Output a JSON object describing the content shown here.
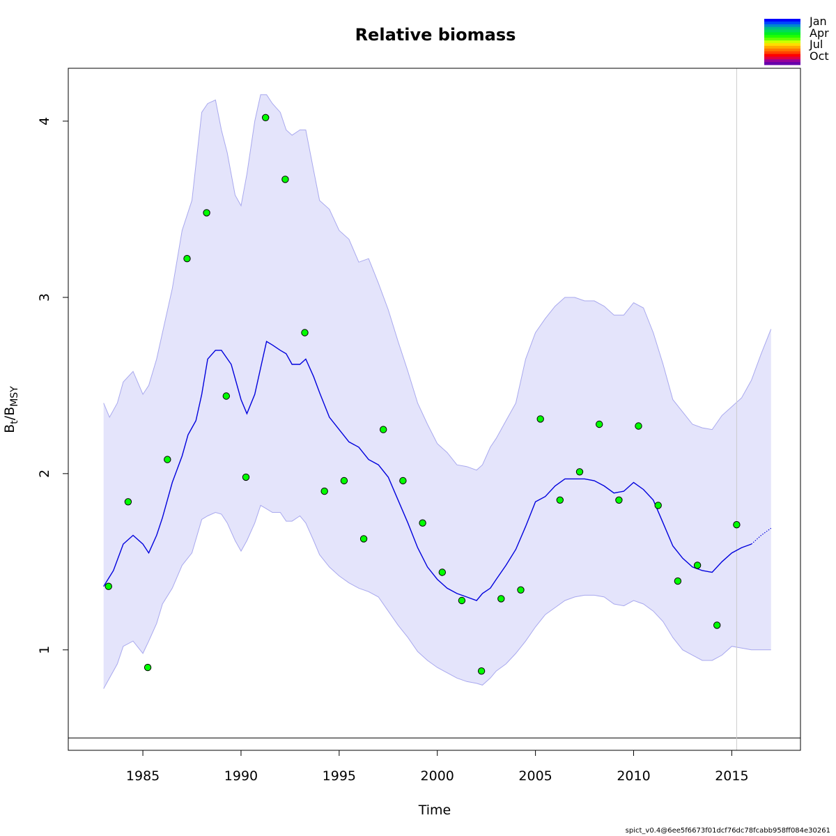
{
  "chart_data": {
    "type": "line",
    "title": "Relative biomass",
    "xlabel": "Time",
    "ylabel_main": "B",
    "ylabel_sub_t": "t",
    "ylabel_slash": "/B",
    "ylabel_sub_msy": "MSY",
    "xlim": [
      1981.2,
      2018.5
    ],
    "ylim": [
      0.43,
      4.3
    ],
    "x_ticks": [
      1985,
      1990,
      1995,
      2000,
      2005,
      2010,
      2015
    ],
    "y_ticks": [
      1,
      2,
      3,
      4
    ],
    "tick_labels_x": [
      "1985",
      "1990",
      "1995",
      "2000",
      "2005",
      "2010",
      "2015"
    ],
    "tick_labels_y": [
      "1",
      "2",
      "3",
      "4"
    ],
    "reference_line_y": 0.5,
    "vertical_line_x": 2015.25,
    "fit_end_x": 2016.0,
    "colors": {
      "ci_fill": "#e4e4fb",
      "ci_edge": "#a8a8ee",
      "line": "#0000dd",
      "points": "#00ff00",
      "vline": "#cccccc",
      "hline": "#000000"
    },
    "series": [
      {
        "role": "estimate",
        "x": [
          1983.0,
          1983.5,
          1984.0,
          1984.5,
          1985.0,
          1985.3,
          1985.7,
          1986.0,
          1986.5,
          1987.0,
          1987.3,
          1987.7,
          1988.0,
          1988.3,
          1988.7,
          1989.0,
          1989.5,
          1990.0,
          1990.3,
          1990.7,
          1991.0,
          1991.3,
          1991.6,
          1992.0,
          1992.3,
          1992.6,
          1993.0,
          1993.3,
          1993.7,
          1994.0,
          1994.5,
          1995.0,
          1995.5,
          1996.0,
          1996.5,
          1997.0,
          1997.5,
          1998.0,
          1998.5,
          1999.0,
          1999.5,
          2000.0,
          2000.5,
          2001.0,
          2001.5,
          2002.0,
          2002.3,
          2002.7,
          2003.0,
          2003.5,
          2004.0,
          2004.5,
          2005.0,
          2005.5,
          2006.0,
          2006.5,
          2007.0,
          2007.5,
          2008.0,
          2008.5,
          2009.0,
          2009.5,
          2010.0,
          2010.5,
          2011.0,
          2011.5,
          2012.0,
          2012.5,
          2013.0,
          2013.5,
          2014.0,
          2014.5,
          2015.0,
          2015.5,
          2016.0
        ],
        "y": [
          1.36,
          1.45,
          1.6,
          1.65,
          1.6,
          1.55,
          1.65,
          1.75,
          1.95,
          2.1,
          2.22,
          2.3,
          2.45,
          2.65,
          2.7,
          2.7,
          2.62,
          2.42,
          2.34,
          2.45,
          2.6,
          2.75,
          2.73,
          2.7,
          2.68,
          2.62,
          2.62,
          2.65,
          2.55,
          2.46,
          2.32,
          2.25,
          2.18,
          2.15,
          2.08,
          2.05,
          1.98,
          1.85,
          1.72,
          1.58,
          1.47,
          1.4,
          1.35,
          1.32,
          1.3,
          1.28,
          1.32,
          1.35,
          1.4,
          1.48,
          1.57,
          1.7,
          1.84,
          1.87,
          1.93,
          1.97,
          1.97,
          1.97,
          1.96,
          1.93,
          1.89,
          1.9,
          1.95,
          1.91,
          1.85,
          1.72,
          1.59,
          1.52,
          1.47,
          1.45,
          1.44,
          1.5,
          1.55,
          1.58,
          1.6
        ]
      },
      {
        "role": "forecast",
        "x": [
          2016.0,
          2016.5,
          2017.0
        ],
        "y": [
          1.6,
          1.65,
          1.69
        ]
      },
      {
        "role": "ci_upper",
        "x": [
          1983.0,
          1983.3,
          1983.7,
          1984.0,
          1984.5,
          1985.0,
          1985.3,
          1985.7,
          1986.0,
          1986.5,
          1987.0,
          1987.5,
          1988.0,
          1988.3,
          1988.7,
          1989.0,
          1989.3,
          1989.7,
          1990.0,
          1990.3,
          1990.7,
          1991.0,
          1991.3,
          1991.6,
          1992.0,
          1992.3,
          1992.6,
          1993.0,
          1993.3,
          1993.7,
          1994.0,
          1994.5,
          1995.0,
          1995.5,
          1996.0,
          1996.5,
          1997.0,
          1997.5,
          1998.0,
          1998.5,
          1999.0,
          1999.5,
          2000.0,
          2000.5,
          2001.0,
          2001.5,
          2002.0,
          2002.3,
          2002.7,
          2003.0,
          2003.5,
          2004.0,
          2004.5,
          2005.0,
          2005.5,
          2006.0,
          2006.5,
          2007.0,
          2007.5,
          2008.0,
          2008.5,
          2009.0,
          2009.5,
          2010.0,
          2010.5,
          2011.0,
          2011.5,
          2012.0,
          2012.5,
          2013.0,
          2013.5,
          2014.0,
          2014.5,
          2015.0,
          2015.5,
          2016.0,
          2016.5,
          2017.0
        ],
        "y": [
          2.4,
          2.32,
          2.4,
          2.52,
          2.58,
          2.45,
          2.5,
          2.65,
          2.8,
          3.05,
          3.38,
          3.55,
          4.05,
          4.1,
          4.12,
          3.95,
          3.82,
          3.58,
          3.52,
          3.7,
          4.0,
          4.15,
          4.15,
          4.1,
          4.05,
          3.95,
          3.92,
          3.95,
          3.95,
          3.72,
          3.55,
          3.5,
          3.38,
          3.33,
          3.2,
          3.22,
          3.08,
          2.93,
          2.75,
          2.58,
          2.4,
          2.28,
          2.17,
          2.12,
          2.05,
          2.04,
          2.02,
          2.05,
          2.15,
          2.2,
          2.3,
          2.4,
          2.65,
          2.8,
          2.88,
          2.95,
          3.0,
          3.0,
          2.98,
          2.98,
          2.95,
          2.9,
          2.9,
          2.97,
          2.94,
          2.8,
          2.62,
          2.42,
          2.35,
          2.28,
          2.26,
          2.25,
          2.33,
          2.38,
          2.43,
          2.53,
          2.68,
          2.82
        ]
      },
      {
        "role": "ci_lower",
        "x": [
          1983.0,
          1983.3,
          1983.7,
          1984.0,
          1984.5,
          1985.0,
          1985.3,
          1985.7,
          1986.0,
          1986.5,
          1987.0,
          1987.5,
          1988.0,
          1988.3,
          1988.7,
          1989.0,
          1989.3,
          1989.7,
          1990.0,
          1990.3,
          1990.7,
          1991.0,
          1991.3,
          1991.6,
          1992.0,
          1992.3,
          1992.6,
          1993.0,
          1993.3,
          1993.7,
          1994.0,
          1994.5,
          1995.0,
          1995.5,
          1996.0,
          1996.5,
          1997.0,
          1997.5,
          1998.0,
          1998.5,
          1999.0,
          1999.5,
          2000.0,
          2000.5,
          2001.0,
          2001.5,
          2002.0,
          2002.3,
          2002.7,
          2003.0,
          2003.5,
          2004.0,
          2004.5,
          2005.0,
          2005.5,
          2006.0,
          2006.5,
          2007.0,
          2007.5,
          2008.0,
          2008.5,
          2009.0,
          2009.5,
          2010.0,
          2010.5,
          2011.0,
          2011.5,
          2012.0,
          2012.5,
          2013.0,
          2013.5,
          2014.0,
          2014.5,
          2015.0,
          2015.5,
          2016.0,
          2016.5,
          2017.0
        ],
        "y": [
          0.78,
          0.84,
          0.92,
          1.02,
          1.05,
          0.98,
          1.05,
          1.15,
          1.26,
          1.35,
          1.48,
          1.55,
          1.74,
          1.76,
          1.78,
          1.77,
          1.72,
          1.62,
          1.56,
          1.62,
          1.72,
          1.82,
          1.8,
          1.78,
          1.78,
          1.73,
          1.73,
          1.76,
          1.72,
          1.62,
          1.54,
          1.47,
          1.42,
          1.38,
          1.35,
          1.33,
          1.3,
          1.22,
          1.14,
          1.07,
          0.99,
          0.94,
          0.9,
          0.87,
          0.84,
          0.82,
          0.81,
          0.8,
          0.84,
          0.88,
          0.92,
          0.98,
          1.05,
          1.13,
          1.2,
          1.24,
          1.28,
          1.3,
          1.31,
          1.31,
          1.3,
          1.26,
          1.25,
          1.28,
          1.26,
          1.22,
          1.16,
          1.07,
          1.0,
          0.97,
          0.94,
          0.94,
          0.97,
          1.02,
          1.01,
          1.0,
          1.0,
          1.0
        ]
      },
      {
        "role": "observations",
        "x": [
          1983.25,
          1984.25,
          1985.25,
          1986.25,
          1987.25,
          1988.25,
          1989.25,
          1990.25,
          1991.25,
          1992.25,
          1993.25,
          1994.25,
          1995.25,
          1996.25,
          1997.25,
          1998.25,
          1999.25,
          2000.25,
          2001.25,
          2002.25,
          2003.25,
          2004.25,
          2005.25,
          2006.25,
          2007.25,
          2008.25,
          2009.25,
          2010.25,
          2011.25,
          2012.25,
          2013.25,
          2014.25,
          2015.25
        ],
        "y": [
          1.36,
          1.84,
          0.9,
          2.08,
          3.22,
          3.48,
          2.44,
          1.98,
          4.02,
          3.67,
          2.8,
          1.9,
          1.96,
          1.63,
          2.25,
          1.96,
          1.72,
          1.44,
          1.28,
          0.88,
          1.29,
          1.34,
          2.31,
          1.85,
          2.01,
          2.28,
          1.85,
          2.27,
          1.82,
          1.39,
          1.48,
          1.14,
          1.71
        ]
      }
    ],
    "legend": {
      "placement": "top-right",
      "labels": [
        "Jan",
        "Apr",
        "Jul",
        "Oct"
      ],
      "swatches": [
        "#0000ff",
        "#0044ff",
        "#0088cc",
        "#00bb88",
        "#00dd55",
        "#00ee22",
        "#22ff00",
        "#66ff00",
        "#ccff00",
        "#ffdd00",
        "#ffaa00",
        "#ff7700",
        "#ff4400",
        "#ff0000",
        "#dd0044",
        "#990099",
        "#6600aa"
      ]
    }
  },
  "footer": "spict_v0.4@6ee5f6673f01dcf76dc78fcabb958ff084e30261"
}
